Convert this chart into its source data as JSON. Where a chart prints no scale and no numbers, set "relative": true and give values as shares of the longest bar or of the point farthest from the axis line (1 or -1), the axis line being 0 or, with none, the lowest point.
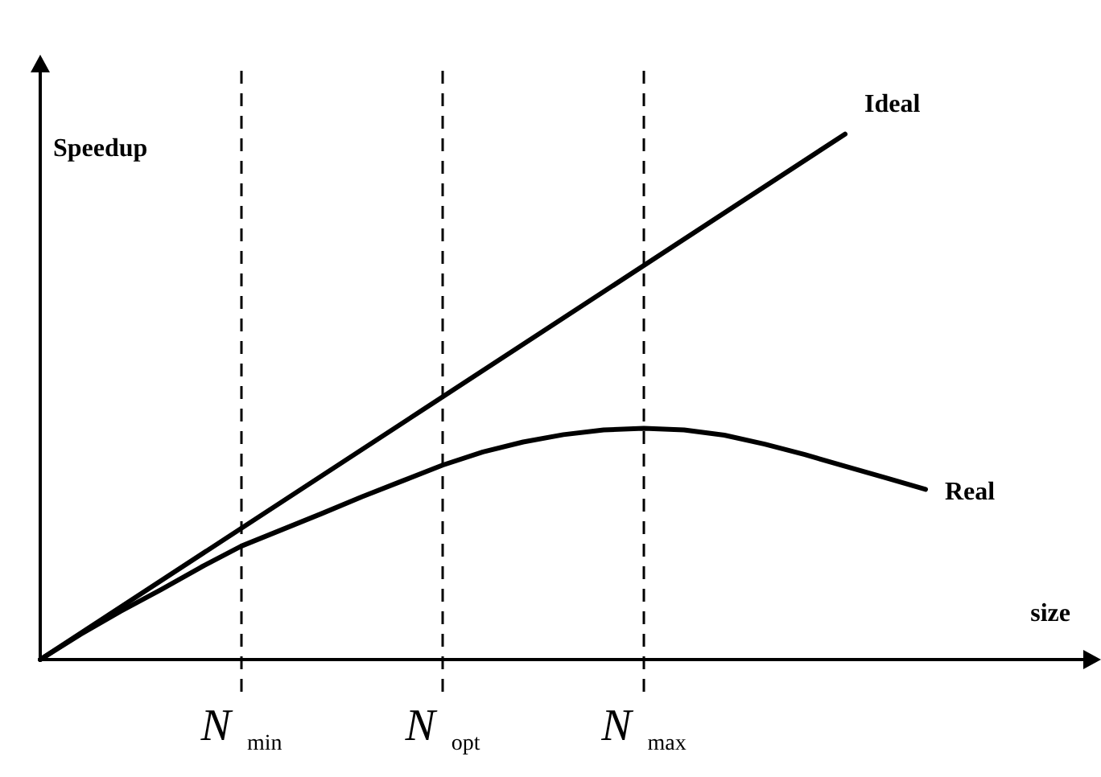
{
  "chart_data": {
    "type": "line",
    "relative": true,
    "xlabel": "size",
    "ylabel": "Speedup",
    "categories": [
      null,
      null,
      null,
      null,
      null,
      "N$_{min}$",
      null,
      null,
      null,
      null,
      "N$_{opt}$",
      null,
      null,
      null,
      null,
      "N$_{max}$",
      null,
      null,
      null,
      null,
      null,
      null,
      null,
      null,
      null,
      null,
      null
    ],
    "series": [
      {
        "name": "Ideal",
        "color": "#000000",
        "values": [
          0,
          null,
          null,
          null,
          null,
          null,
          null,
          null,
          null,
          null,
          null,
          null,
          null,
          null,
          null,
          null,
          null,
          null,
          null,
          null,
          1,
          null,
          null,
          null,
          null,
          null,
          null
        ]
      },
      {
        "name": "Real",
        "color": "#000000",
        "values": [
          0,
          0.048,
          0.092,
          0.133,
          0.176,
          0.216,
          0.247,
          0.278,
          0.31,
          0.34,
          0.37,
          0.395,
          0.414,
          0.428,
          0.437,
          0.44,
          0.437,
          0.427,
          0.41,
          0.39,
          0.368,
          0.346,
          0.324,
          null,
          null,
          null,
          null
        ]
      }
    ],
    "ref_lines": [
      {
        "axis": "x",
        "value": "N$_{min}$",
        "line_style": "dashed"
      },
      {
        "axis": "x",
        "value": "N$_{opt}$",
        "line_style": "dashed"
      },
      {
        "axis": "x",
        "value": "N$_{max}$",
        "line_style": "dashed"
      }
    ],
    "legend": false,
    "marker": "none",
    "line_style": "solid"
  }
}
